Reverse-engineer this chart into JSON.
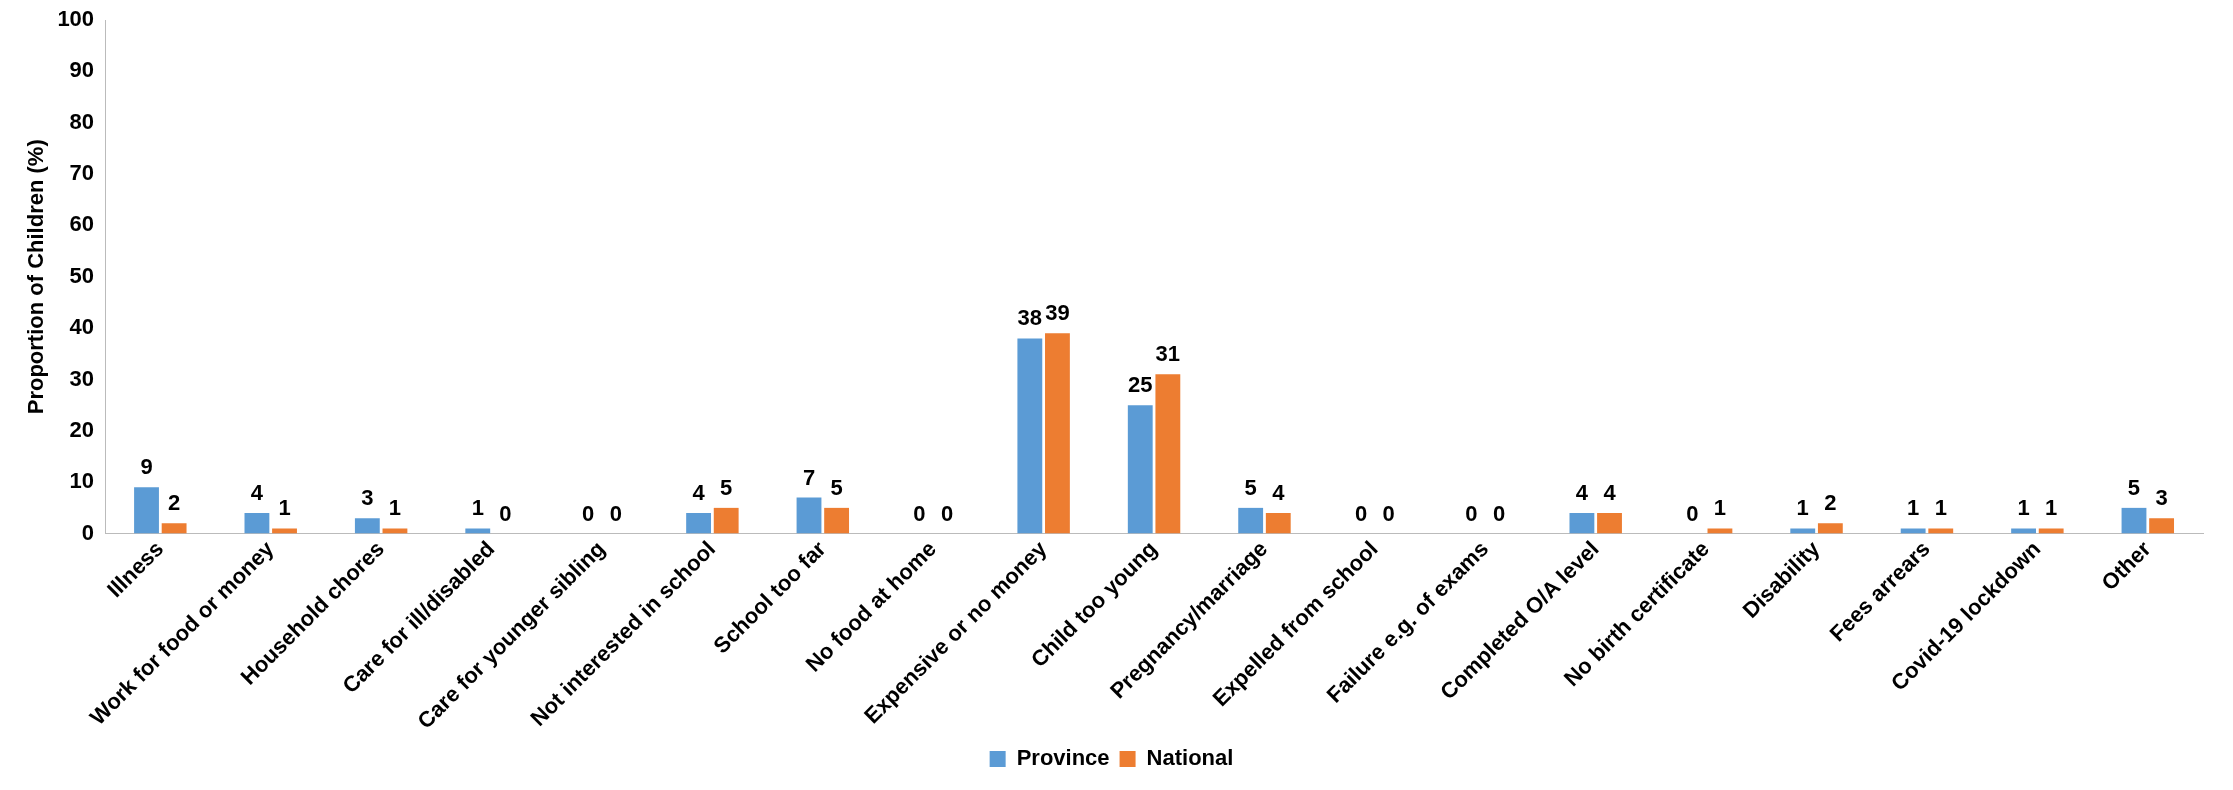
{
  "chart_data": {
    "type": "bar",
    "ylabel": "Proportion of Children (%)",
    "categories": [
      "Illness",
      "Work for food or money",
      "Household chores",
      "Care for ill/disabled",
      "Care for younger sibling",
      "Not interested in school",
      "School too far",
      "No food at home",
      "Expensive or no money",
      "Child too young",
      "Pregnancy/marriage",
      "Expelled from school",
      "Failure e.g. of exams",
      "Completed O/A level",
      "No birth certificate",
      "Disability",
      "Fees arrears",
      "Covid-19 lockdown",
      "Other"
    ],
    "series": [
      {
        "name": "Province",
        "color": "#5b9bd5",
        "values": [
          9,
          4,
          3,
          1,
          0,
          4,
          7,
          0,
          38,
          25,
          5,
          0,
          0,
          4,
          0,
          1,
          1,
          1,
          5
        ]
      },
      {
        "name": "National",
        "color": "#ed7d31",
        "values": [
          2,
          1,
          1,
          0,
          0,
          5,
          5,
          0,
          39,
          31,
          4,
          0,
          0,
          4,
          1,
          2,
          1,
          1,
          3
        ]
      }
    ],
    "ylim": [
      0,
      100
    ],
    "yticks": [
      0,
      10,
      20,
      30,
      40,
      50,
      60,
      70,
      80,
      90,
      100
    ],
    "grid": false,
    "legend": "bottom",
    "data_labels": true
  }
}
